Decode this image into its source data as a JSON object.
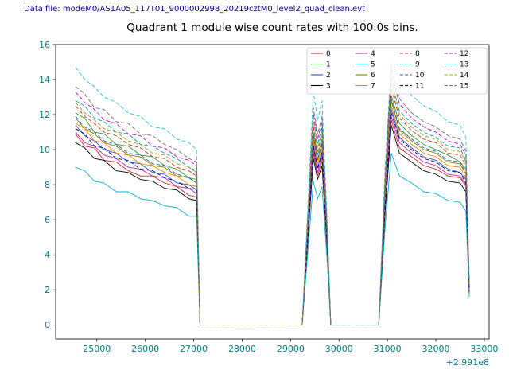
{
  "header": {
    "text": "Data file: modeM0/AS1A05_117T01_9000002998_20219cztM0_level2_quad_clean.evt"
  },
  "chart_data": {
    "type": "line",
    "title": "Quadrant 1 module wise count rates with 100.0s bins.",
    "xlabel": "",
    "ylabel": "",
    "x_axis_offset_label": "+2.991e8",
    "xlim": [
      24150,
      33100
    ],
    "ylim": [
      -0.8,
      16
    ],
    "xticks": [
      25000,
      26000,
      27000,
      28000,
      29000,
      30000,
      31000,
      32000,
      33000
    ],
    "yticks": [
      0,
      2,
      4,
      6,
      8,
      10,
      12,
      14,
      16
    ],
    "grid": false,
    "legend": {
      "position": "upper right inside plot",
      "columns": 4,
      "order": "column-major"
    },
    "colors": {
      "tick_label": "#008080",
      "header_text": "#00008b",
      "title": "#000000"
    },
    "x": [
      24560,
      24750,
      24950,
      25150,
      25400,
      25650,
      25900,
      26150,
      26400,
      26650,
      26900,
      27060,
      27130,
      28200,
      29240,
      29360,
      29470,
      29560,
      29650,
      29760,
      29830,
      30300,
      30820,
      30950,
      31080,
      31250,
      31500,
      31750,
      32000,
      32250,
      32500,
      32620,
      32690
    ],
    "series": [
      {
        "name": "0",
        "color": "#d62728",
        "linestyle": "-",
        "values": [
          10.9,
          10.2,
          10.1,
          9.4,
          9.3,
          8.8,
          8.5,
          8.5,
          8.1,
          7.9,
          7.4,
          7.3,
          0,
          0,
          0,
          5.1,
          9.8,
          8.5,
          9.4,
          4.2,
          0,
          0,
          0,
          6.5,
          11.7,
          10.1,
          9.6,
          9.1,
          8.9,
          8.5,
          8.4,
          7.9,
          1.9
        ]
      },
      {
        "name": "1",
        "color": "#2ca02c",
        "linestyle": "-",
        "values": [
          12.1,
          11.8,
          11.0,
          10.9,
          10.3,
          10.2,
          9.7,
          9.6,
          9.1,
          8.9,
          8.4,
          8.3,
          0,
          0,
          0,
          5.8,
          11.0,
          9.7,
          10.6,
          4.7,
          0,
          0,
          0,
          7.4,
          13.1,
          11.5,
          10.8,
          10.3,
          10.0,
          9.7,
          9.3,
          8.9,
          2.1
        ]
      },
      {
        "name": "2",
        "color": "#2a52be",
        "linestyle": "-",
        "values": [
          11.4,
          10.8,
          10.5,
          10.0,
          9.8,
          9.3,
          9.2,
          8.7,
          8.6,
          8.1,
          8.0,
          7.7,
          0,
          0,
          0,
          5.4,
          10.3,
          9.0,
          9.9,
          4.4,
          0,
          0,
          0,
          6.9,
          12.3,
          10.7,
          10.1,
          9.6,
          9.4,
          8.9,
          8.7,
          8.3,
          2.0
        ]
      },
      {
        "name": "3",
        "color": "#000000",
        "linestyle": "-",
        "values": [
          10.4,
          10.1,
          9.5,
          9.4,
          8.8,
          8.7,
          8.3,
          8.2,
          7.8,
          7.7,
          7.2,
          7.1,
          0,
          0,
          0,
          5.0,
          9.5,
          8.3,
          9.1,
          4.1,
          0,
          0,
          0,
          6.3,
          11.4,
          9.8,
          9.3,
          8.8,
          8.6,
          8.2,
          8.1,
          7.6,
          1.8
        ]
      },
      {
        "name": "4",
        "color": "#b030b0",
        "linestyle": "-",
        "values": [
          11.0,
          10.4,
          10.2,
          9.7,
          9.5,
          9.0,
          8.9,
          8.5,
          8.4,
          7.9,
          7.8,
          7.5,
          0,
          0,
          0,
          5.2,
          10.0,
          8.7,
          9.6,
          4.3,
          0,
          0,
          0,
          6.7,
          11.9,
          10.4,
          9.8,
          9.3,
          9.1,
          8.6,
          8.5,
          8.0,
          1.9
        ]
      },
      {
        "name": "5",
        "color": "#00b5c8",
        "linestyle": "-",
        "values": [
          9.0,
          8.8,
          8.2,
          8.1,
          7.6,
          7.6,
          7.2,
          7.1,
          6.8,
          6.7,
          6.2,
          6.2,
          0,
          0,
          0,
          4.3,
          8.2,
          7.2,
          7.9,
          3.5,
          0,
          0,
          0,
          5.5,
          9.8,
          8.5,
          8.1,
          7.6,
          7.5,
          7.1,
          7.0,
          6.5,
          1.6
        ]
      },
      {
        "name": "6",
        "color": "#808000",
        "linestyle": "-",
        "values": [
          11.8,
          11.2,
          10.9,
          10.4,
          10.2,
          9.7,
          9.6,
          9.1,
          9.0,
          8.5,
          8.4,
          8.1,
          0,
          0,
          0,
          5.6,
          10.7,
          9.4,
          10.3,
          4.6,
          0,
          0,
          0,
          7.1,
          12.8,
          11.1,
          10.5,
          10.0,
          9.8,
          9.3,
          9.2,
          8.6,
          2.0
        ]
      },
      {
        "name": "7",
        "color": "#ff7f0e",
        "linestyle": "-",
        "values": [
          11.5,
          11.2,
          10.5,
          10.4,
          9.8,
          9.7,
          9.2,
          9.1,
          8.7,
          8.5,
          8.0,
          7.9,
          0,
          0,
          0,
          5.5,
          10.5,
          9.2,
          10.1,
          4.5,
          0,
          0,
          0,
          7.0,
          12.5,
          10.9,
          10.3,
          9.8,
          9.6,
          9.1,
          9.0,
          8.4,
          2.0
        ]
      },
      {
        "name": "8",
        "color": "#d62728",
        "linestyle": "--",
        "values": [
          12.5,
          11.9,
          11.5,
          11.0,
          10.8,
          10.3,
          10.1,
          9.6,
          9.5,
          9.0,
          8.8,
          8.5,
          0,
          0,
          0,
          5.9,
          11.3,
          9.9,
          10.9,
          4.9,
          0,
          0,
          0,
          7.6,
          13.5,
          11.8,
          11.1,
          10.6,
          10.4,
          9.8,
          9.7,
          9.1,
          2.2
        ]
      },
      {
        "name": "9",
        "color": "#009e9e",
        "linestyle": "--",
        "values": [
          12.8,
          12.5,
          11.8,
          11.6,
          11.0,
          10.9,
          10.3,
          10.2,
          9.8,
          9.5,
          9.0,
          8.8,
          0,
          0,
          0,
          6.2,
          11.8,
          10.3,
          11.3,
          5.0,
          0,
          0,
          0,
          7.8,
          14.0,
          12.2,
          11.5,
          11.0,
          10.7,
          10.2,
          10.1,
          9.4,
          2.2
        ]
      },
      {
        "name": "10",
        "color": "#2a52be",
        "linestyle": "--",
        "values": [
          11.9,
          11.3,
          11.0,
          10.5,
          10.3,
          9.8,
          9.7,
          9.2,
          9.1,
          8.6,
          8.4,
          8.1,
          0,
          0,
          0,
          5.7,
          10.8,
          9.5,
          10.4,
          4.6,
          0,
          0,
          0,
          7.2,
          12.9,
          11.2,
          10.6,
          10.1,
          9.9,
          9.4,
          9.3,
          8.7,
          2.1
        ]
      },
      {
        "name": "11",
        "color": "#000080",
        "linestyle": "--",
        "values": [
          11.2,
          10.9,
          10.2,
          10.1,
          9.5,
          9.4,
          8.9,
          8.8,
          8.4,
          8.2,
          7.8,
          7.7,
          0,
          0,
          0,
          5.3,
          10.2,
          8.9,
          9.8,
          4.4,
          0,
          0,
          0,
          6.8,
          12.1,
          10.6,
          10.0,
          9.5,
          9.3,
          8.8,
          8.7,
          8.1,
          1.9
        ]
      },
      {
        "name": "12",
        "color": "#cc00cc",
        "linestyle": "--",
        "values": [
          13.3,
          12.7,
          12.3,
          11.7,
          11.5,
          10.9,
          10.8,
          10.2,
          10.1,
          9.6,
          9.4,
          9.1,
          0,
          0,
          0,
          6.3,
          12.1,
          10.6,
          11.6,
          5.2,
          0,
          0,
          0,
          8.1,
          14.4,
          12.6,
          11.8,
          11.3,
          11.0,
          10.5,
          10.3,
          9.7,
          2.3
        ]
      },
      {
        "name": "13",
        "color": "#20c8c8",
        "linestyle": "--",
        "values": [
          14.7,
          14.0,
          13.6,
          13.0,
          12.7,
          12.1,
          11.9,
          11.3,
          11.2,
          10.6,
          10.4,
          10.0,
          0,
          0,
          0,
          7.0,
          13.3,
          11.7,
          12.8,
          5.7,
          0,
          0,
          0,
          8.9,
          15.0,
          13.9,
          13.1,
          12.5,
          12.2,
          11.6,
          11.4,
          10.7,
          2.5
        ]
      },
      {
        "name": "14",
        "color": "#9aa018",
        "linestyle": "--",
        "values": [
          12.7,
          12.1,
          11.7,
          11.2,
          11.0,
          10.5,
          10.3,
          9.8,
          9.7,
          9.2,
          9.0,
          8.7,
          0,
          0,
          0,
          6.1,
          11.6,
          10.1,
          11.1,
          5.0,
          0,
          0,
          0,
          7.7,
          13.8,
          12.0,
          11.3,
          10.8,
          10.6,
          10.0,
          9.9,
          9.3,
          2.2
        ]
      },
      {
        "name": "15",
        "color": "#707070",
        "linestyle": "--",
        "values": [
          13.6,
          13.2,
          12.4,
          12.3,
          11.6,
          11.5,
          10.9,
          10.8,
          10.3,
          10.0,
          9.5,
          9.3,
          0,
          0,
          0,
          6.5,
          12.4,
          10.9,
          11.9,
          5.3,
          0,
          0,
          0,
          8.3,
          14.7,
          12.9,
          12.1,
          11.6,
          11.3,
          10.8,
          10.6,
          9.9,
          2.4
        ]
      }
    ]
  }
}
